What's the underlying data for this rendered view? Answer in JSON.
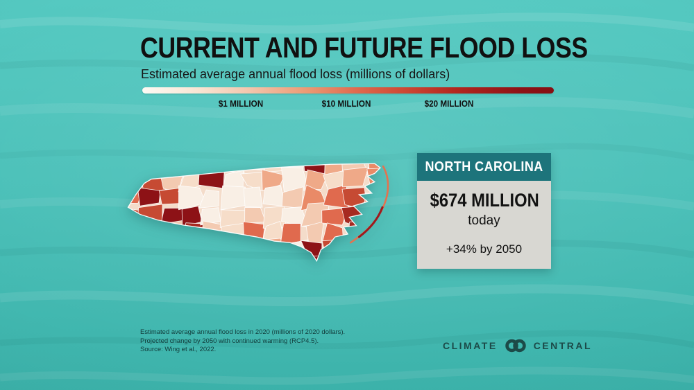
{
  "header": {
    "title": "CURRENT AND FUTURE FLOOD LOSS",
    "subtitle": "Estimated average annual flood loss (millions of dollars)"
  },
  "legend": {
    "labels": [
      "$1 MILLION",
      "$10 MILLION",
      "$20 MILLION"
    ],
    "gradient_stops": [
      "#fdfaf4",
      "#f3c6ad",
      "#e06a4e",
      "#b3271f",
      "#8d1216"
    ]
  },
  "card": {
    "region_label": "NORTH CAROLINA",
    "value": "$674 MILLION",
    "value_caption": "today",
    "projection": "+34% by 2050",
    "header_bg": "#1d747b",
    "body_bg": "#d8d7d2"
  },
  "footnote": {
    "line1": "Estimated average annual flood loss in 2020 (millions of 2020 dollars).",
    "line2": "Projected change by 2050 with continued warming (RCP4.5).",
    "line3": "Source: Wing et al., 2022."
  },
  "brand": {
    "word_left": "CLIMATE",
    "word_right": "CENTRAL",
    "logo": "climate-central-rings-logo",
    "color": "#1c4a48"
  },
  "map": {
    "palette": {
      "base": "#f4dcca",
      "pale": [
        "#f9efe5",
        "#f6ddc9",
        "#f3cab1"
      ],
      "mid": [
        "#efa988",
        "#e98a67",
        "#e06a4e"
      ],
      "dark": [
        "#c64a33",
        "#a62a21",
        "#8d1216"
      ],
      "stroke": "#ffffff",
      "outer_banks_light": "#e2734f",
      "outer_banks_dark": "#9e1a1d"
    }
  },
  "chart_data": {
    "type": "heatmap",
    "variant": "choropleth map of North Carolina counties",
    "title": "CURRENT AND FUTURE FLOOD LOSS",
    "subtitle": "Estimated average annual flood loss (millions of dollars)",
    "color_scale": {
      "unit": "millions of 2020 dollars",
      "min_color": "#fdfaf4",
      "ticks": [
        {
          "label": "$1 MILLION",
          "color": "#f3c6ad"
        },
        {
          "label": "$10 MILLION",
          "color": "#e06a4e"
        },
        {
          "label": "$20 MILLION",
          "color": "#8d1216"
        }
      ]
    },
    "legend_position": "top",
    "highlight": {
      "region": "NORTH CAROLINA",
      "annual_flood_loss_today": "$674 MILLION",
      "projected_change": "+34% by 2050"
    },
    "scenario_note": "Projected change by 2050 with continued warming (RCP4.5).",
    "source": "Wing et al., 2022",
    "depiction_note": "Darkest shading (≥$20M) in western mountain counties and along the southeastern coast / Outer Banks; most central counties shaded below $1M–$10M."
  }
}
